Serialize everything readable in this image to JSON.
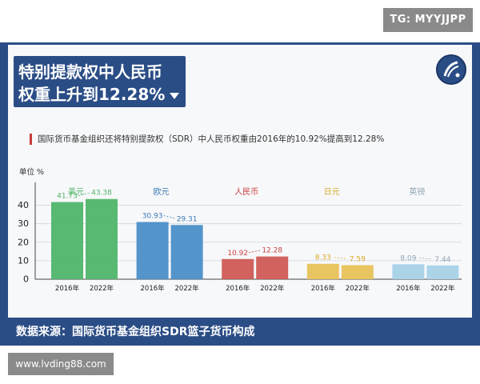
{
  "watermark_top": "TG: MYYJJPP",
  "watermark_bottom": "www.lvding88.com",
  "headline": {
    "line1": "特别提款权中人民币",
    "line2": "权重上升到12.28%"
  },
  "subtitle": "国际货币基金组织还将特别提款权（SDR）中人民币权重由2016年的10.92%提高到12.28%",
  "footer": "数据来源：国际货币基金组织SDR篮子货币构成",
  "chart_data": {
    "type": "bar",
    "ylabel": "单位 %",
    "ylim": [
      0,
      45
    ],
    "yticks": [
      0,
      10,
      20,
      30,
      40
    ],
    "grid": true,
    "x_labels": [
      "2016年",
      "2022年"
    ],
    "groups": [
      {
        "name": "美元",
        "values": [
          41.73,
          43.38
        ],
        "value_labels": [
          "41.73",
          "43.38"
        ],
        "color": "#4fb56a",
        "label_color": "#4fb56a"
      },
      {
        "name": "欧元",
        "values": [
          30.93,
          29.31
        ],
        "value_labels": [
          "30.93",
          "29.31"
        ],
        "color": "#4a8ec8",
        "label_color": "#3a7ab6"
      },
      {
        "name": "人民币",
        "values": [
          10.92,
          12.28
        ],
        "value_labels": [
          "10.92",
          "12.28"
        ],
        "color": "#d05a55",
        "label_color": "#c9403c"
      },
      {
        "name": "日元",
        "values": [
          8.33,
          7.59
        ],
        "value_labels": [
          "8.33",
          "7.59"
        ],
        "color": "#e8c25a",
        "label_color": "#d9a827"
      },
      {
        "name": "英镑",
        "values": [
          8.09,
          7.44
        ],
        "value_labels": [
          "8.09",
          "7.44"
        ],
        "color": "#a8d2e8",
        "label_color": "#8fa6b5"
      }
    ]
  }
}
